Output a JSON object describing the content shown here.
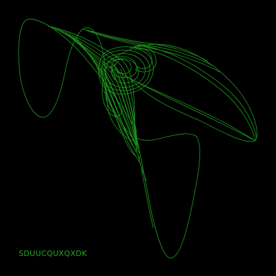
{
  "caption": "SDUUCQUXQXDK",
  "colors": {
    "background": "#000000",
    "curve": "#1f9a1f",
    "caption": "#22a722"
  },
  "figure": {
    "kind": "strange-attractor-curve"
  }
}
